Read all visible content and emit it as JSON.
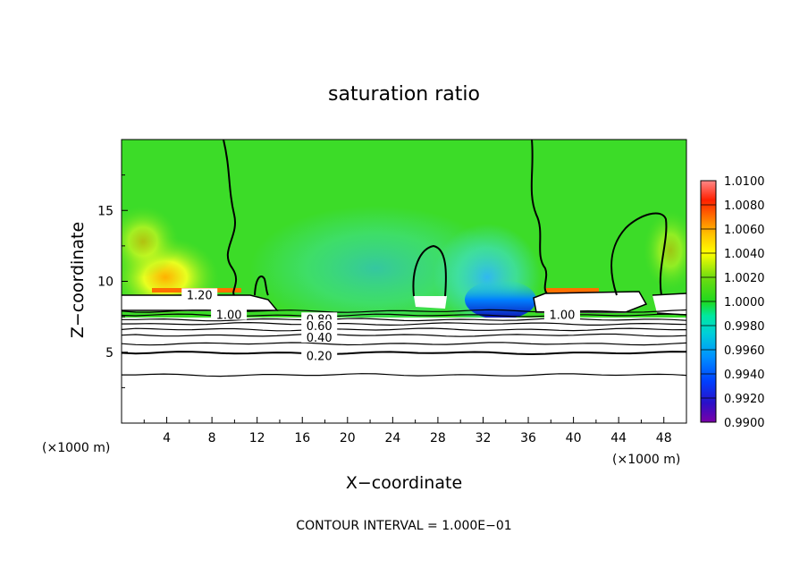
{
  "chart_data": {
    "type": "heatmap",
    "title": "saturation ratio",
    "xlabel": "X−coordinate",
    "ylabel": "Z−coordinate",
    "x_unit": "(×1000 m)",
    "y_unit": "(×1000 m)",
    "xlim": [
      0,
      50
    ],
    "ylim": [
      0,
      20
    ],
    "x_ticks": [
      4,
      8,
      12,
      16,
      20,
      24,
      28,
      32,
      36,
      40,
      44,
      48
    ],
    "y_ticks": [
      5,
      10,
      15
    ],
    "colorbar": {
      "min": 0.99,
      "max": 1.01,
      "labels": [
        "1.0100",
        "1.0080",
        "1.0060",
        "1.0040",
        "1.0020",
        "1.0000",
        "0.9980",
        "0.9960",
        "0.9940",
        "0.9920",
        "0.9900"
      ],
      "colors": [
        "#7a00a8",
        "#2a10c8",
        "#0040ff",
        "#0090ff",
        "#00d0d8",
        "#00e8a0",
        "#1ed81e",
        "#70dc10",
        "#ffff00",
        "#ffc000",
        "#ff7000",
        "#ff2000",
        "#ff8888"
      ]
    },
    "contour_labels": [
      {
        "text": "1.20",
        "x": 6.9,
        "z": 9.0
      },
      {
        "text": "1.00",
        "x": 9.5,
        "z": 7.6
      },
      {
        "text": "1.00",
        "x": 39.0,
        "z": 7.6
      },
      {
        "text": "0.80",
        "x": 17.5,
        "z": 7.3
      },
      {
        "text": "0.60",
        "x": 17.5,
        "z": 6.8
      },
      {
        "text": "0.40",
        "x": 17.5,
        "z": 6.0
      },
      {
        "text": "0.20",
        "x": 17.5,
        "z": 4.7
      }
    ],
    "contour_levels_z": [
      7.9,
      7.6,
      7.3,
      7.0,
      6.6,
      6.2,
      5.6,
      4.95,
      3.4
    ],
    "footer": "CONTOUR INTERVAL = 1.000E−01"
  }
}
